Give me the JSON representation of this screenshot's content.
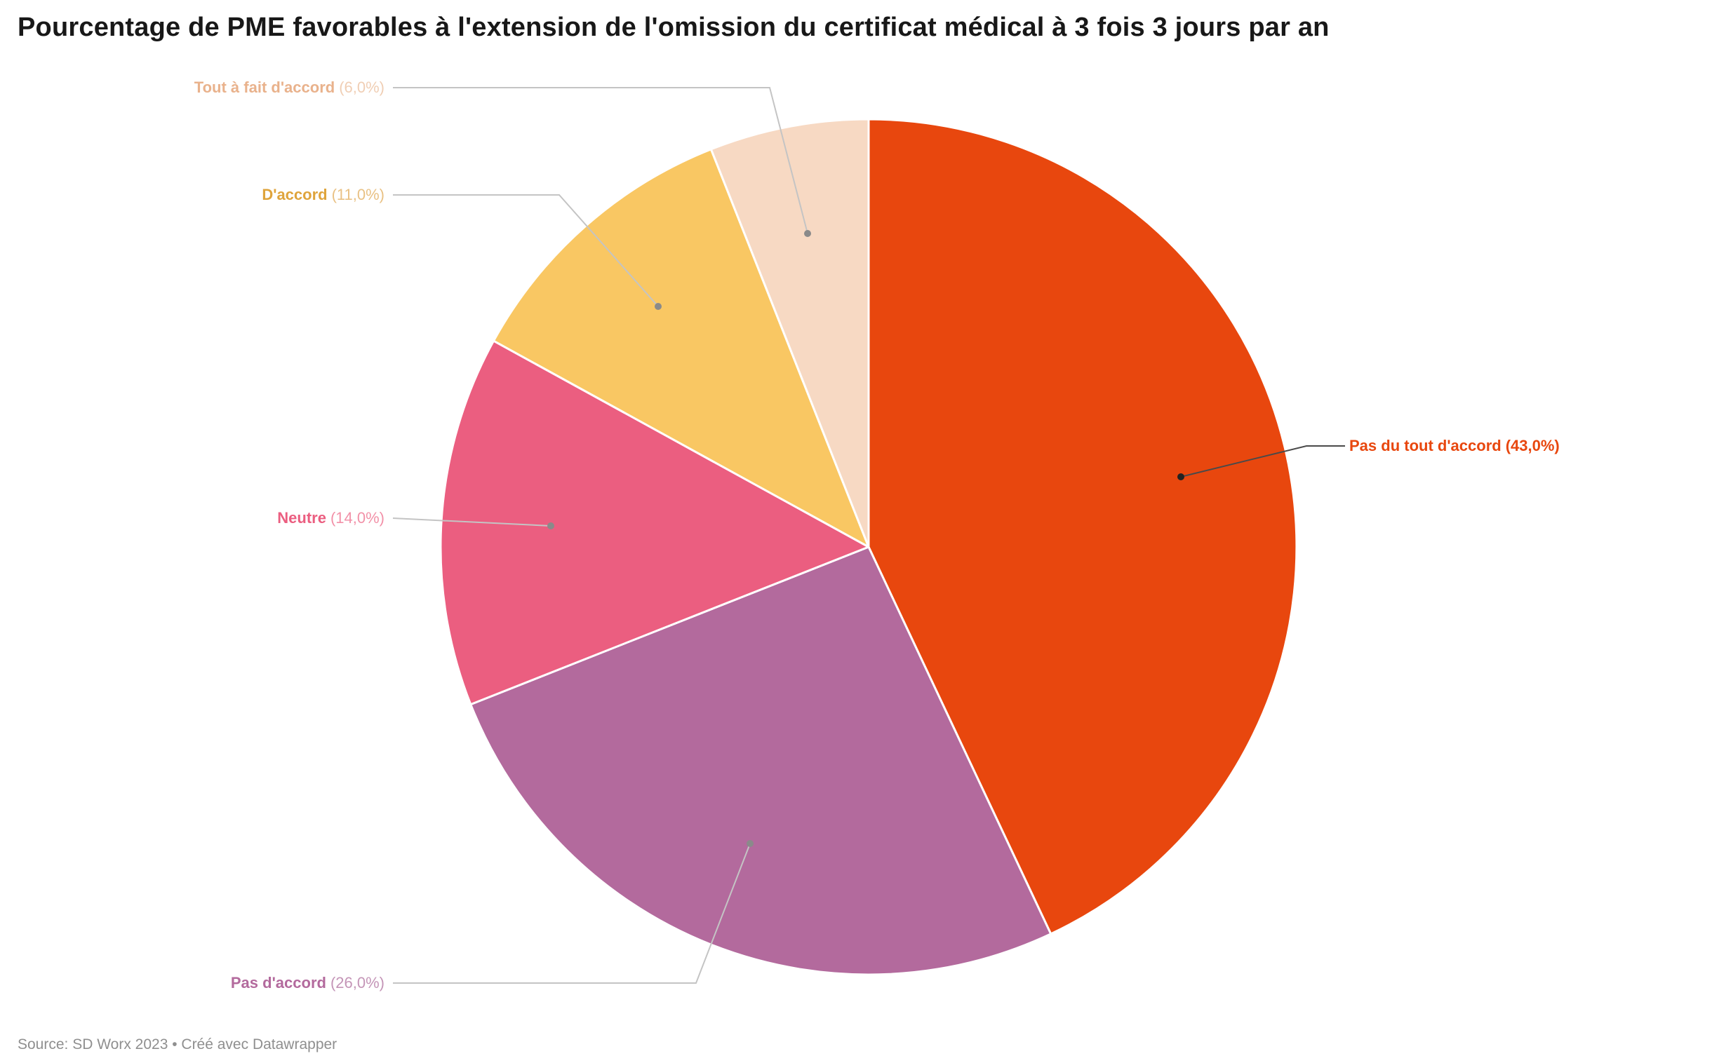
{
  "title": "Pourcentage de PME favorables à l'extension de l'omission du certificat médical à 3 fois 3 jours par an",
  "footer": "Source: SD Worx 2023 • Créé avec Datawrapper",
  "chart_data": {
    "type": "pie",
    "title": "Pourcentage de PME favorables à l'extension de l'omission du certificat médical à 3 fois 3 jours par an",
    "unit": "%",
    "start_angle_deg": 0,
    "direction": "clockwise",
    "legend_position": "labels-with-leader-lines",
    "source": "SD Worx 2023",
    "tool": "Datawrapper",
    "slices": [
      {
        "label": "Pas du tout d'accord",
        "value": 43.0,
        "value_text": "(43,0%)",
        "color": "#e8470e",
        "label_color": "#e8470e",
        "value_color": "#e8470e"
      },
      {
        "label": "Pas d'accord",
        "value": 26.0,
        "value_text": "(26,0%)",
        "color": "#b36a9d",
        "label_color": "#b36a9d",
        "value_color": "#c495b7"
      },
      {
        "label": "Neutre",
        "value": 14.0,
        "value_text": "(14,0%)",
        "color": "#eb5e80",
        "label_color": "#eb5e80",
        "value_color": "#f291a8"
      },
      {
        "label": "D'accord",
        "value": 11.0,
        "value_text": "(11,0%)",
        "color": "#f9c763",
        "label_color": "#dfa43c",
        "value_color": "#e9c184"
      },
      {
        "label": "Tout à fait d'accord",
        "value": 6.0,
        "value_text": "(6,0%)",
        "color": "#f7d9c3",
        "label_color": "#e9b28c",
        "value_color": "#f0ceb4"
      }
    ]
  }
}
